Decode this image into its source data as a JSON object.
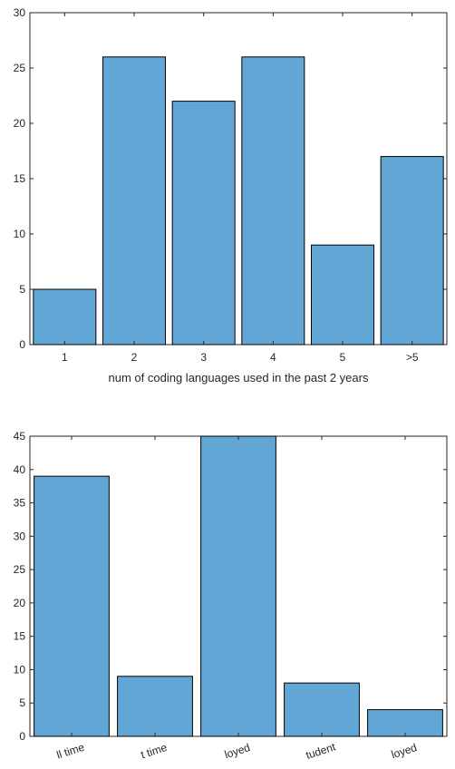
{
  "colors": {
    "bar_fill": "#62a6d6",
    "bar_edge": "#000000",
    "axis": "#262626",
    "background": "#ffffff"
  },
  "chart_data": [
    {
      "type": "bar",
      "title": "",
      "xlabel": "num of coding languages used in the past 2 years",
      "ylabel": "",
      "categories": [
        "1",
        "2",
        "3",
        "4",
        "5",
        ">5"
      ],
      "values": [
        5,
        26,
        22,
        26,
        9,
        17
      ],
      "ylim": [
        0,
        30
      ],
      "yticks": [
        0,
        5,
        10,
        15,
        20,
        25,
        30
      ],
      "grid": false,
      "legend": "none"
    },
    {
      "type": "bar",
      "title": "",
      "xlabel": "",
      "ylabel": "",
      "categories": [
        "ll time",
        "t time",
        "loyed",
        "tudent",
        "loyed"
      ],
      "values": [
        39,
        9,
        45,
        8,
        4
      ],
      "ylim": [
        0,
        45
      ],
      "yticks": [
        0,
        5,
        10,
        15,
        20,
        25,
        30,
        35,
        40,
        45
      ],
      "tick_rotation": "angled",
      "grid": false,
      "legend": "none"
    }
  ]
}
